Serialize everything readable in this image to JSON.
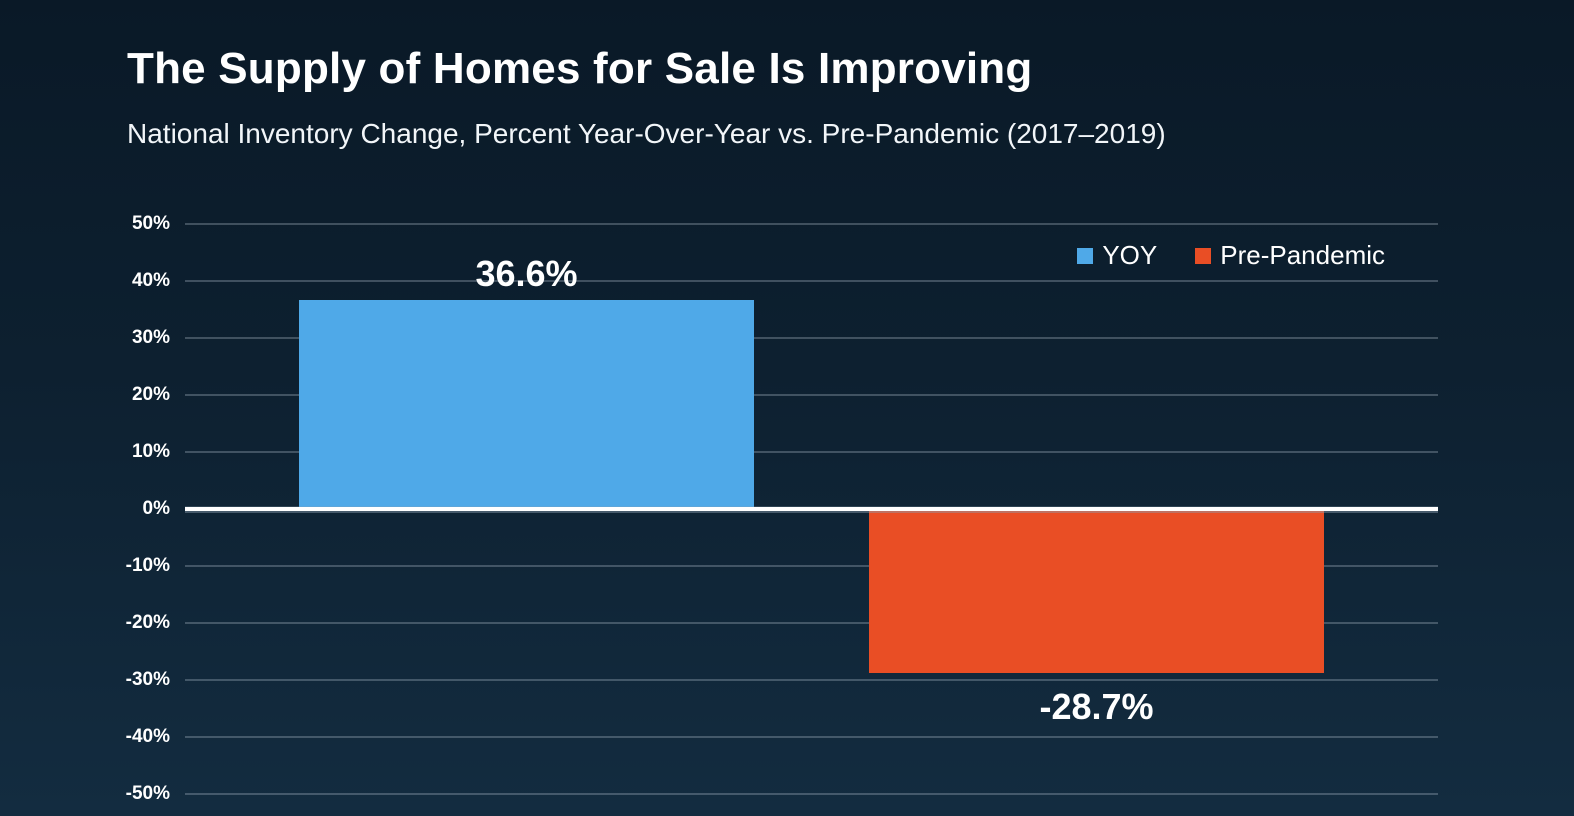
{
  "header": {
    "title": "The Supply of Homes for Sale Is Improving",
    "subtitle": "National Inventory Change, Percent Year-Over-Year vs. Pre-Pandemic (2017–2019)"
  },
  "legend": {
    "items": [
      {
        "label": "YOY",
        "color": "#4FA9E8"
      },
      {
        "label": "Pre-Pandemic",
        "color": "#E94E25"
      }
    ]
  },
  "chart_data": {
    "type": "bar",
    "title": "The Supply of Homes for Sale Is Improving",
    "subtitle": "National Inventory Change, Percent Year-Over-Year vs. Pre-Pandemic (2017–2019)",
    "categories": [
      "YOY",
      "Pre-Pandemic"
    ],
    "values": [
      36.6,
      -28.7
    ],
    "series": [
      {
        "name": "YOY",
        "value": 36.6,
        "data_label": "36.6%",
        "color": "#4FA9E8"
      },
      {
        "name": "Pre-Pandemic",
        "value": -28.7,
        "data_label": "-28.7%",
        "color": "#E94E25"
      }
    ],
    "xlabel": "",
    "ylabel": "",
    "ylim": [
      -50,
      50
    ],
    "ytick_step": 10,
    "ytick_labels": [
      "50%",
      "40%",
      "30%",
      "20%",
      "10%",
      "0%",
      "-10%",
      "-20%",
      "-30%",
      "-40%",
      "-50%"
    ],
    "ytick_values": [
      50,
      40,
      30,
      20,
      10,
      0,
      -10,
      -20,
      -30,
      -40,
      -50
    ],
    "grid": true,
    "zero_line": true,
    "legend_position": "top-right"
  },
  "colors": {
    "background_top": "#0A1927",
    "background_bottom": "#132C40",
    "text": "#FFFFFF",
    "gridline": "rgba(186,200,212,0.30)",
    "zero_line": "#FFFFFF",
    "yoy_blue": "#4FA9E8",
    "pre_pandemic_orange": "#E94E25"
  }
}
